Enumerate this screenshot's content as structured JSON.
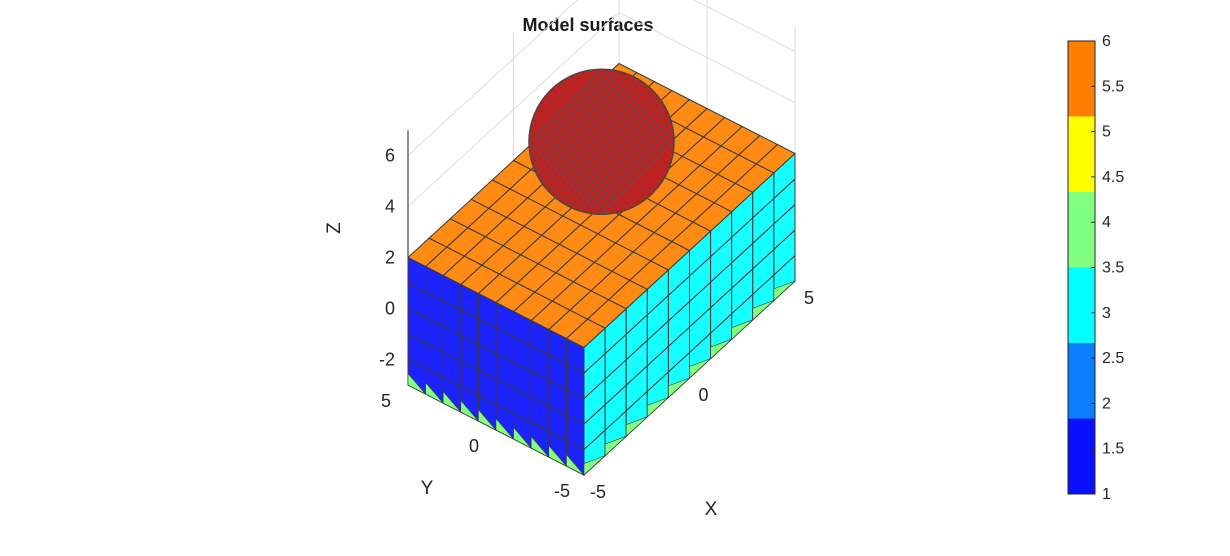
{
  "chart_data": {
    "type": "3d-surface",
    "title": "Model surfaces",
    "xlabel": "X",
    "ylabel": "Y",
    "zlabel": "Z",
    "x_ticks": [
      "-5",
      "0",
      "5"
    ],
    "y_ticks": [
      "-5",
      "0",
      "5"
    ],
    "z_ticks": [
      "-2",
      "0",
      "2",
      "4",
      "6"
    ],
    "xlim": [
      -5,
      5
    ],
    "ylim": [
      -5,
      5
    ],
    "zlim": [
      -3,
      7
    ],
    "grid": true,
    "box": {
      "x_range": [
        -5,
        5
      ],
      "y_range": [
        -5,
        5
      ],
      "z_range": [
        -3,
        2
      ],
      "x_cells": 10,
      "y_cells": 10,
      "z_cells": 5,
      "faces": [
        {
          "name": "top",
          "value": 5.8
        },
        {
          "name": "front-x",
          "value": 3.2
        },
        {
          "name": "left-y",
          "value": 1.4
        },
        {
          "name": "bottom",
          "value": 4.7
        }
      ]
    },
    "sphere": {
      "center": [
        0,
        0,
        4.5
      ],
      "radius": 2.5,
      "color": "#cc1a1a"
    },
    "colorbar": {
      "range": [
        1,
        6
      ],
      "ticks": [
        "1",
        "1.5",
        "2",
        "2.5",
        "3",
        "3.5",
        "4",
        "4.5",
        "5",
        "5.5",
        "6"
      ],
      "bands": [
        {
          "from": 1,
          "to": 2,
          "color": "#0a10ff"
        },
        {
          "from": 2,
          "to": 3,
          "color": "#0a80ff"
        },
        {
          "from": 3,
          "to": 4,
          "color": "#00ffff"
        },
        {
          "from": 4,
          "to": 5,
          "color": "#80ff80"
        },
        {
          "from": 5,
          "to": 6,
          "color": "#ffff00"
        }
      ],
      "top_band": {
        "from": 5,
        "to": 6,
        "color": "#ff8000"
      }
    }
  }
}
